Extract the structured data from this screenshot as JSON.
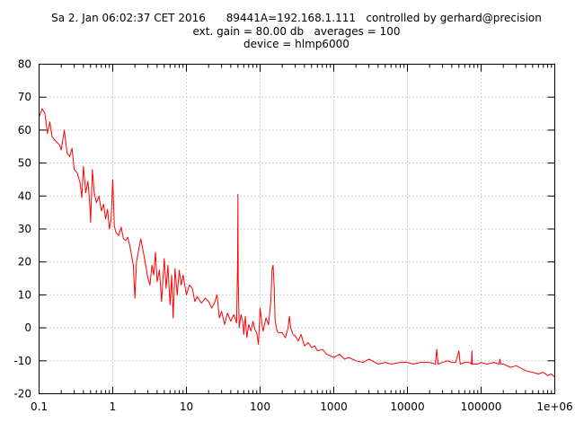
{
  "chart_data": {
    "type": "line",
    "title_lines": [
      "Sa 2. Jan 06:02:37 CET 2016      89441A=192.168.1.111   controlled by gerhard@precision",
      "ext. gain = 80.00 db   averages = 100",
      "device = hlmp6000"
    ],
    "xlabel": "",
    "ylabel": "",
    "x_scale": "log",
    "xlim": [
      0.1,
      1000000
    ],
    "ylim": [
      -20,
      80
    ],
    "grid": true,
    "x_tick_labels": [
      "0.1",
      "1",
      "10",
      "100",
      "1000",
      "10000",
      "100000",
      "1e+06"
    ],
    "x_tick_values": [
      0.1,
      1,
      10,
      100,
      1000,
      10000,
      100000,
      1000000
    ],
    "y_tick_labels": [
      "-20",
      "-10",
      "0",
      "10",
      "20",
      "30",
      "40",
      "50",
      "60",
      "70",
      "80"
    ],
    "y_tick_values": [
      -20,
      -10,
      0,
      10,
      20,
      30,
      40,
      50,
      60,
      70,
      80
    ],
    "series": [
      {
        "color": "#ff0000",
        "points": [
          [
            0.1,
            64
          ],
          [
            0.11,
            66.5
          ],
          [
            0.12,
            65
          ],
          [
            0.13,
            59
          ],
          [
            0.14,
            62.5
          ],
          [
            0.15,
            58
          ],
          [
            0.17,
            56.5
          ],
          [
            0.19,
            55.5
          ],
          [
            0.2,
            54
          ],
          [
            0.22,
            60
          ],
          [
            0.24,
            53
          ],
          [
            0.26,
            52
          ],
          [
            0.28,
            54.5
          ],
          [
            0.3,
            48
          ],
          [
            0.33,
            47
          ],
          [
            0.36,
            44
          ],
          [
            0.38,
            39.5
          ],
          [
            0.4,
            49
          ],
          [
            0.43,
            41
          ],
          [
            0.46,
            44.5
          ],
          [
            0.49,
            37
          ],
          [
            0.5,
            32
          ],
          [
            0.53,
            48
          ],
          [
            0.56,
            41
          ],
          [
            0.6,
            38
          ],
          [
            0.65,
            40
          ],
          [
            0.7,
            35.5
          ],
          [
            0.75,
            37.5
          ],
          [
            0.8,
            33
          ],
          [
            0.85,
            36
          ],
          [
            0.9,
            30
          ],
          [
            0.95,
            33
          ],
          [
            1.0,
            45
          ],
          [
            1.05,
            31
          ],
          [
            1.1,
            29
          ],
          [
            1.2,
            28
          ],
          [
            1.3,
            30.5
          ],
          [
            1.4,
            27
          ],
          [
            1.5,
            26.5
          ],
          [
            1.6,
            27.5
          ],
          [
            1.7,
            25
          ],
          [
            1.8,
            22
          ],
          [
            1.9,
            19
          ],
          [
            2.0,
            9
          ],
          [
            2.1,
            20
          ],
          [
            2.2,
            22.5
          ],
          [
            2.4,
            27
          ],
          [
            2.6,
            23
          ],
          [
            2.8,
            19
          ],
          [
            3.0,
            15
          ],
          [
            3.2,
            13
          ],
          [
            3.4,
            19
          ],
          [
            3.6,
            16
          ],
          [
            3.8,
            23
          ],
          [
            4.0,
            14
          ],
          [
            4.3,
            17.5
          ],
          [
            4.6,
            8
          ],
          [
            5.0,
            21
          ],
          [
            5.3,
            12
          ],
          [
            5.6,
            19
          ],
          [
            6.0,
            7
          ],
          [
            6.3,
            16
          ],
          [
            6.6,
            3
          ],
          [
            7.0,
            18
          ],
          [
            7.5,
            10
          ],
          [
            8.0,
            17.5
          ],
          [
            8.5,
            13
          ],
          [
            9.0,
            16
          ],
          [
            10.0,
            10
          ],
          [
            11,
            13
          ],
          [
            12,
            12
          ],
          [
            13,
            8
          ],
          [
            14,
            9.5
          ],
          [
            16,
            7.5
          ],
          [
            18,
            9
          ],
          [
            20,
            8
          ],
          [
            22,
            6
          ],
          [
            24,
            7.5
          ],
          [
            26,
            10
          ],
          [
            28,
            3
          ],
          [
            30,
            5
          ],
          [
            33,
            1
          ],
          [
            36,
            4.5
          ],
          [
            40,
            2
          ],
          [
            44,
            4
          ],
          [
            48,
            1.5
          ],
          [
            49.5,
            20
          ],
          [
            50,
            40.5
          ],
          [
            50.5,
            15
          ],
          [
            52,
            0
          ],
          [
            55,
            4
          ],
          [
            58,
            2
          ],
          [
            60,
            -2
          ],
          [
            63,
            3.5
          ],
          [
            66,
            -3
          ],
          [
            70,
            1
          ],
          [
            75,
            -1
          ],
          [
            80,
            2
          ],
          [
            85,
            -0.5
          ],
          [
            90,
            -1.5
          ],
          [
            95,
            -5
          ],
          [
            100,
            6
          ],
          [
            105,
            2
          ],
          [
            110,
            -1
          ],
          [
            120,
            3
          ],
          [
            130,
            1
          ],
          [
            140,
            8
          ],
          [
            145,
            17.5
          ],
          [
            150,
            19
          ],
          [
            155,
            13
          ],
          [
            160,
            2
          ],
          [
            170,
            -1
          ],
          [
            180,
            -1.5
          ],
          [
            200,
            -1.5
          ],
          [
            220,
            -3
          ],
          [
            240,
            0
          ],
          [
            250,
            3.5
          ],
          [
            260,
            0
          ],
          [
            280,
            -2
          ],
          [
            300,
            -2.5
          ],
          [
            330,
            -4
          ],
          [
            360,
            -2
          ],
          [
            400,
            -5.5
          ],
          [
            450,
            -4.5
          ],
          [
            500,
            -6
          ],
          [
            550,
            -5.5
          ],
          [
            600,
            -7
          ],
          [
            700,
            -6.5
          ],
          [
            800,
            -8
          ],
          [
            900,
            -8.5
          ],
          [
            1000,
            -9
          ],
          [
            1200,
            -8
          ],
          [
            1400,
            -9.5
          ],
          [
            1600,
            -9
          ],
          [
            2000,
            -10
          ],
          [
            2500,
            -10.5
          ],
          [
            3000,
            -9.5
          ],
          [
            4000,
            -11
          ],
          [
            5000,
            -10.5
          ],
          [
            6000,
            -11
          ],
          [
            8000,
            -10.5
          ],
          [
            10000,
            -10.5
          ],
          [
            12000,
            -11
          ],
          [
            15000,
            -10.5
          ],
          [
            20000,
            -10.5
          ],
          [
            24000,
            -11
          ],
          [
            25000,
            -6.5
          ],
          [
            26000,
            -11
          ],
          [
            30000,
            -10.5
          ],
          [
            35000,
            -10
          ],
          [
            40000,
            -10.5
          ],
          [
            45000,
            -10.5
          ],
          [
            50000,
            -7
          ],
          [
            52000,
            -11
          ],
          [
            60000,
            -10.5
          ],
          [
            70000,
            -10.5
          ],
          [
            74000,
            -11
          ],
          [
            75000,
            -7
          ],
          [
            76000,
            -11
          ],
          [
            90000,
            -11
          ],
          [
            100000,
            -10.5
          ],
          [
            120000,
            -11
          ],
          [
            150000,
            -10.5
          ],
          [
            175000,
            -11
          ],
          [
            180000,
            -9.5
          ],
          [
            185000,
            -11
          ],
          [
            200000,
            -11
          ],
          [
            250000,
            -12
          ],
          [
            300000,
            -11.5
          ],
          [
            400000,
            -13
          ],
          [
            500000,
            -13.5
          ],
          [
            600000,
            -14
          ],
          [
            700000,
            -13.5
          ],
          [
            800000,
            -14.5
          ],
          [
            900000,
            -14
          ],
          [
            1000000,
            -15
          ]
        ]
      }
    ]
  }
}
